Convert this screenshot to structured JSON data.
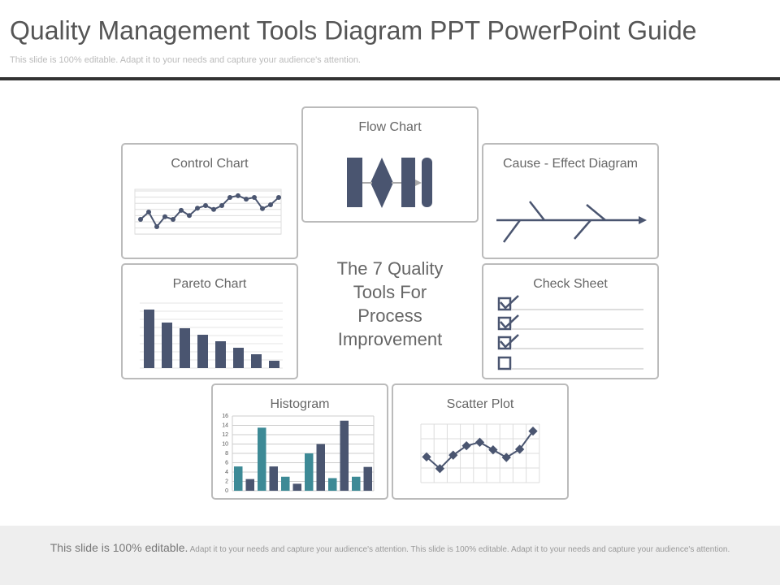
{
  "header": {
    "title": "Quality Management Tools Diagram PPT PowerPoint Guide",
    "subtitle": "This slide is 100% editable. Adapt it to your needs and capture your audience's attention."
  },
  "center_text": "The 7 Quality Tools For Process Improvement",
  "tools": {
    "flow_chart": {
      "label": "Flow Chart"
    },
    "control_chart": {
      "label": "Control Chart",
      "chart_data": {
        "type": "line",
        "color": "#4a5570",
        "values": [
          3.4,
          5.1,
          1.7,
          4,
          3.4,
          5.5,
          4.3,
          6,
          6.6,
          5.7,
          6.6,
          8.5,
          8.9,
          8.1,
          8.5,
          5.9,
          6.8,
          8.5
        ],
        "ylim": [
          0,
          10
        ]
      }
    },
    "cause_effect": {
      "label": "Cause - Effect Diagram"
    },
    "pareto_chart": {
      "label": "Pareto Chart",
      "chart_data": {
        "type": "bar",
        "color": "#4a5570",
        "values": [
          72,
          56,
          49,
          41,
          33,
          25,
          17,
          9
        ],
        "ylim": [
          0,
          80
        ]
      }
    },
    "check_sheet": {
      "label": "Check Sheet"
    },
    "histogram": {
      "label": "Histogram",
      "chart_data": {
        "type": "bar",
        "series": [
          {
            "color": "#3d8a96",
            "values": [
              5.2,
              13.5,
              3,
              8,
              2.7,
              3
            ]
          },
          {
            "color": "#4a5570",
            "values": [
              2.5,
              5.2,
              1.5,
              10,
              15,
              5.1
            ]
          }
        ],
        "ylim": [
          0,
          16
        ],
        "yticks": [
          0,
          2,
          4,
          6,
          8,
          10,
          12,
          14,
          16
        ],
        "grid": true
      }
    },
    "scatter_plot": {
      "label": "Scatter Plot",
      "chart_data": {
        "type": "line",
        "color": "#4a5570",
        "values": [
          4.4,
          2.4,
          4.7,
          6.3,
          6.9,
          5.6,
          4.3,
          5.7,
          8.8
        ],
        "ylim": [
          0,
          10
        ]
      }
    }
  },
  "footer": {
    "lead": "This slide is 100% editable.",
    "text": "Adapt it to your needs and capture your audience's attention. This slide is 100% editable. Adapt it to your needs and capture your audience's attention."
  }
}
